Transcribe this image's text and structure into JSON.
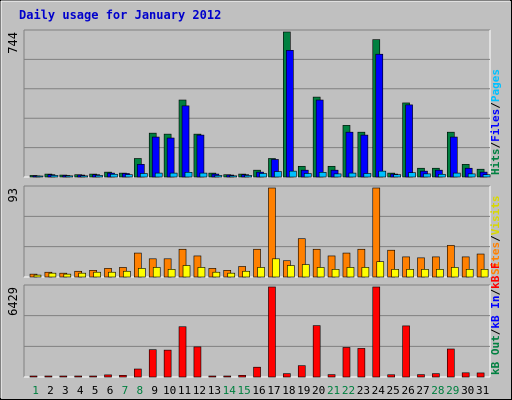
{
  "chart_data": {
    "type": "bar",
    "title": "Daily usage for January 2012",
    "days": [
      "1",
      "2",
      "3",
      "4",
      "5",
      "6",
      "7",
      "8",
      "9",
      "10",
      "11",
      "12",
      "13",
      "14",
      "15",
      "16",
      "17",
      "18",
      "19",
      "20",
      "21",
      "22",
      "23",
      "24",
      "25",
      "26",
      "27",
      "28",
      "29",
      "30",
      "31"
    ],
    "weekend_days": [
      "1",
      "7",
      "8",
      "14",
      "15",
      "21",
      "22",
      "28",
      "29"
    ],
    "panels": [
      {
        "name": "hits-files-pages",
        "ymax": 744,
        "ymax_label": "744",
        "legend": [
          {
            "label": "Pages",
            "color": "#00c0ff"
          },
          {
            "label": "/",
            "color": "#000000"
          },
          {
            "label": "Files",
            "color": "#0000ff"
          },
          {
            "label": "/",
            "color": "#000000"
          },
          {
            "label": "Hits",
            "color": "#008040"
          }
        ],
        "series": [
          {
            "name": "Hits",
            "color": "#008040",
            "offset": 0,
            "values": [
              8,
              15,
              10,
              12,
              15,
              25,
              20,
              95,
              225,
              220,
              395,
              220,
              20,
              12,
              15,
              35,
              95,
              744,
              55,
              410,
              55,
              265,
              230,
              705,
              20,
              380,
              45,
              45,
              230,
              65,
              40
            ]
          },
          {
            "name": "Files",
            "color": "#0000ff",
            "offset": 3,
            "values": [
              6,
              12,
              8,
              10,
              12,
              20,
              18,
              65,
              205,
              200,
              365,
              215,
              15,
              10,
              12,
              25,
              90,
              650,
              35,
              395,
              35,
              230,
              215,
              630,
              15,
              370,
              30,
              35,
              205,
              45,
              25
            ]
          },
          {
            "name": "Pages",
            "color": "#00c0ff",
            "offset": 6,
            "values": [
              4,
              8,
              6,
              6,
              8,
              14,
              12,
              18,
              20,
              20,
              24,
              20,
              8,
              6,
              8,
              18,
              28,
              30,
              18,
              24,
              16,
              20,
              18,
              30,
              12,
              22,
              16,
              14,
              20,
              16,
              12
            ]
          }
        ]
      },
      {
        "name": "visits-sites",
        "ymax": 93,
        "ymax_label": "93",
        "legend": [
          {
            "label": "Visits",
            "color": "#d8d800"
          },
          {
            "label": "/",
            "color": "#000000"
          },
          {
            "label": "Sites",
            "color": "#ff8000"
          }
        ],
        "series": [
          {
            "name": "Sites",
            "color": "#ff8000",
            "offset": 0,
            "values": [
              3,
              5,
              4,
              6,
              7,
              9,
              10,
              25,
              19,
              19,
              29,
              22,
              9,
              7,
              11,
              29,
              93,
              17,
              40,
              29,
              22,
              25,
              29,
              93,
              28,
              21,
              20,
              21,
              33,
              21,
              24
            ]
          },
          {
            "name": "Visits",
            "color": "#ffff00",
            "offset": 4,
            "values": [
              2,
              4,
              3,
              4,
              5,
              5,
              6,
              9,
              10,
              8,
              12,
              10,
              5,
              4,
              6,
              10,
              19,
              12,
              13,
              10,
              8,
              10,
              10,
              16,
              8,
              8,
              8,
              8,
              10,
              8,
              8
            ]
          }
        ]
      },
      {
        "name": "kbytes",
        "ymax": 6429,
        "ymax_label": "6429",
        "legend": [
          {
            "label": "kB F",
            "color": "#ff0000"
          },
          {
            "label": "/",
            "color": "#000000"
          },
          {
            "label": "kB In",
            "color": "#0000ff"
          },
          {
            "label": "/",
            "color": "#000000"
          },
          {
            "label": "kB Out",
            "color": "#008040"
          }
        ],
        "series": [
          {
            "name": "kB F",
            "color": "#ff0000",
            "offset": 0,
            "values": [
              60,
              60,
              60,
              60,
              60,
              150,
              120,
              570,
              1950,
              1920,
              3590,
              2150,
              60,
              60,
              120,
              700,
              6429,
              240,
              810,
              3670,
              170,
              2110,
              2040,
              6429,
              160,
              3650,
              170,
              240,
              2000,
              300,
              290
            ]
          }
        ]
      }
    ]
  }
}
